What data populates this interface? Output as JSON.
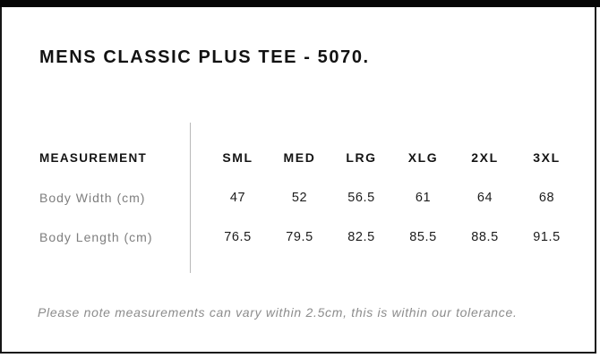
{
  "panel": {
    "title": "MENS CLASSIC PLUS TEE - 5070.",
    "note": "Please note measurements can vary within 2.5cm, this is within our tolerance."
  },
  "size_table": {
    "label_header": "MEASUREMENT",
    "size_headers": [
      "SML",
      "MED",
      "LRG",
      "XLG",
      "2XL",
      "3XL"
    ],
    "rows": [
      {
        "label": "Body Width (cm)",
        "values": [
          "47",
          "52",
          "56.5",
          "61",
          "64",
          "68"
        ]
      },
      {
        "label": "Body Length (cm)",
        "values": [
          "76.5",
          "79.5",
          "82.5",
          "85.5",
          "88.5",
          "91.5"
        ]
      }
    ]
  },
  "colors": {
    "top_bar": "#060606",
    "frame_border": "#161616",
    "heading_text": "#141414",
    "value_text": "#1c1c1c",
    "label_gray": "#7e7e7e",
    "note_gray": "#8c8c8c",
    "divider_gray": "#b9b9b9"
  }
}
